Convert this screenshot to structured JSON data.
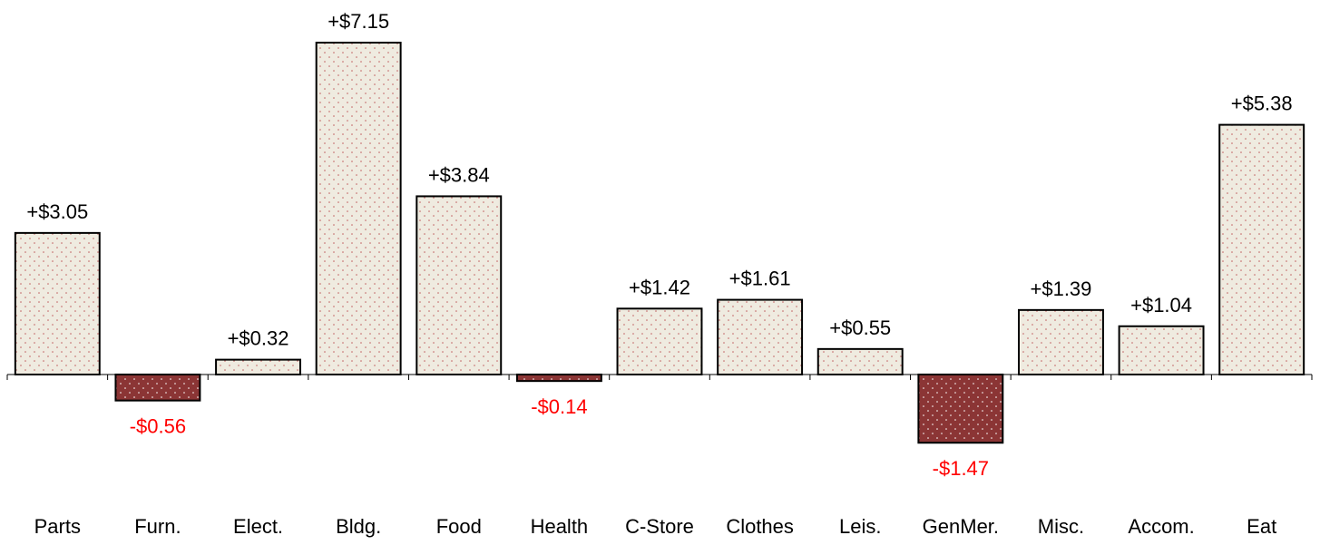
{
  "chart_data": {
    "type": "bar",
    "categories": [
      "Parts",
      "Furn.",
      "Elect.",
      "Bldg.",
      "Food",
      "Health",
      "C-Store",
      "Clothes",
      "Leis.",
      "GenMer.",
      "Misc.",
      "Accom.",
      "Eat"
    ],
    "values": [
      3.05,
      -0.56,
      0.32,
      7.15,
      3.84,
      -0.14,
      1.42,
      1.61,
      0.55,
      -1.47,
      1.39,
      1.04,
      5.38
    ],
    "value_labels": [
      "+$3.05",
      "-$0.56",
      "+$0.32",
      "+$7.15",
      "+$3.84",
      "-$0.14",
      "+$1.42",
      "+$1.61",
      "+$0.55",
      "-$1.47",
      "+$1.39",
      "+$1.04",
      "+$5.38"
    ],
    "color": "#efebe0",
    "negative_color": "#8b3535"
  }
}
